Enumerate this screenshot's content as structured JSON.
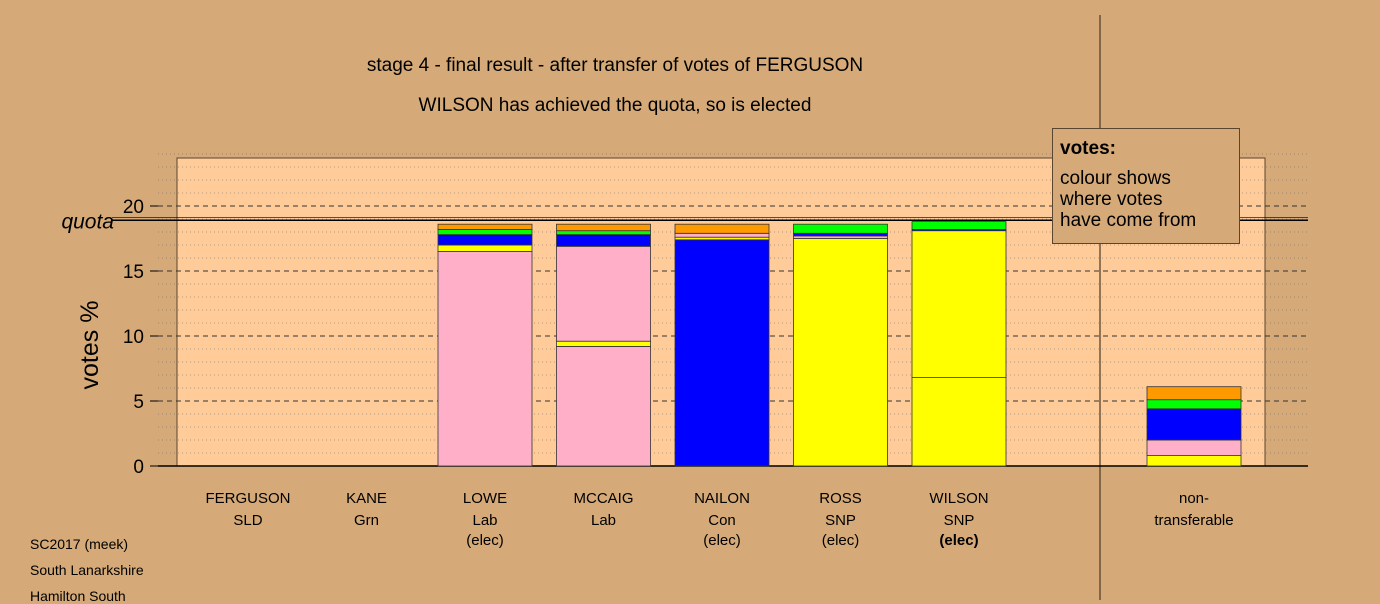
{
  "header": {
    "title": "stage 4 - final result - after transfer of votes of FERGUSON",
    "subtitle": "WILSON has achieved the quota, so is elected"
  },
  "legend": {
    "heading": "votes:",
    "lines": [
      "colour shows",
      "where votes",
      "have come from"
    ]
  },
  "footer": {
    "election": "SC2017 (meek)",
    "council": "South Lanarkshire",
    "ward": "Hamilton South"
  },
  "chart_data": {
    "type": "bar",
    "stacked": true,
    "ylabel": "votes %",
    "ylim": [
      0,
      24
    ],
    "yticks": [
      0,
      5,
      10,
      15,
      20
    ],
    "quota": 18.9,
    "quota_label": "quota",
    "colors": {
      "SNP": "#ffff00",
      "Lab": "#ffb0c8",
      "Con": "#0000ff",
      "Grn": "#00ff00",
      "SLD": "#ff9900",
      "background": "#d5aa78",
      "panel": "#ffcc99"
    },
    "candidates": [
      {
        "name": "FERGUSON",
        "party": "SLD",
        "status": "",
        "segments": []
      },
      {
        "name": "KANE",
        "party": "Grn",
        "status": "",
        "segments": []
      },
      {
        "name": "LOWE",
        "party": "Lab",
        "status": "(elec)",
        "segments": [
          {
            "party": "Lab",
            "value": 16.5
          },
          {
            "party": "SNP",
            "value": 0.5
          },
          {
            "party": "Con",
            "value": 0.8
          },
          {
            "party": "Grn",
            "value": 0.4
          },
          {
            "party": "SLD",
            "value": 0.4
          }
        ]
      },
      {
        "name": "MCCAIG",
        "party": "Lab",
        "status": "",
        "segments": [
          {
            "party": "Lab",
            "value": 9.2
          },
          {
            "party": "SNP",
            "value": 0.4
          },
          {
            "party": "Lab",
            "value": 7.3
          },
          {
            "party": "Con",
            "value": 0.9
          },
          {
            "party": "Grn",
            "value": 0.3
          },
          {
            "party": "SLD",
            "value": 0.5
          }
        ]
      },
      {
        "name": "NAILON",
        "party": "Con",
        "status": "(elec)",
        "segments": [
          {
            "party": "Con",
            "value": 17.4
          },
          {
            "party": "SNP",
            "value": 0.2
          },
          {
            "party": "Lab",
            "value": 0.3
          },
          {
            "party": "SLD",
            "value": 0.7
          }
        ]
      },
      {
        "name": "ROSS",
        "party": "SNP",
        "status": "(elec)",
        "segments": [
          {
            "party": "SNP",
            "value": 17.5
          },
          {
            "party": "Lab",
            "value": 0.2
          },
          {
            "party": "Con",
            "value": 0.2
          },
          {
            "party": "Grn",
            "value": 0.7
          }
        ]
      },
      {
        "name": "WILSON",
        "party": "SNP",
        "status": "(elec)",
        "segments": [
          {
            "party": "SNP",
            "value": 6.8
          },
          {
            "party": "SNP",
            "value": 11.3
          },
          {
            "party": "Con",
            "value": 0.1
          },
          {
            "party": "Grn",
            "value": 0.6
          }
        ]
      }
    ],
    "nontransferable": {
      "label_lines": [
        "non-",
        "transferable"
      ],
      "segments": [
        {
          "party": "SNP",
          "value": 0.8
        },
        {
          "party": "Lab",
          "value": 1.2
        },
        {
          "party": "Con",
          "value": 2.4
        },
        {
          "party": "Grn",
          "value": 0.7
        },
        {
          "party": "SLD",
          "value": 1.0
        }
      ]
    }
  }
}
